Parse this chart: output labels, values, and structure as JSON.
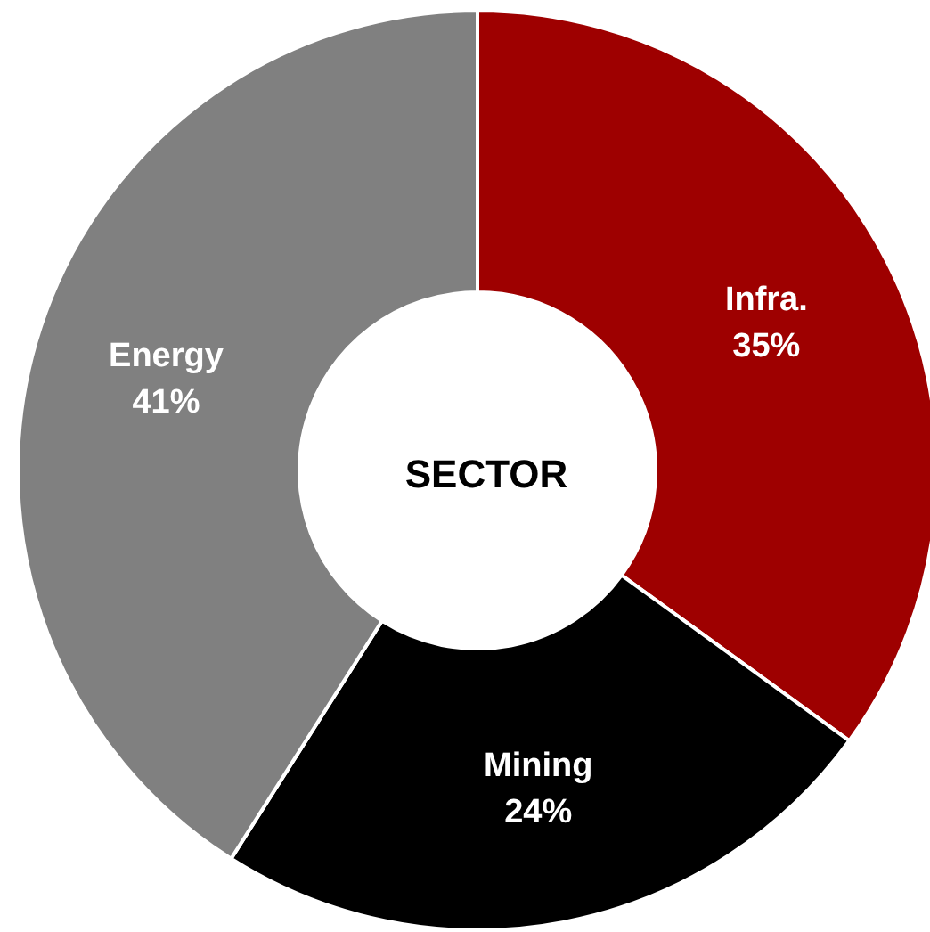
{
  "chart_data": {
    "type": "donut",
    "title": "SECTOR",
    "categories": [
      "Infra.",
      "Mining",
      "Energy"
    ],
    "values": [
      35,
      24,
      41
    ],
    "value_labels": [
      "35%",
      "24%",
      "41%"
    ],
    "colors": [
      "#9e0000",
      "#000000",
      "#808080"
    ],
    "legend": false
  }
}
